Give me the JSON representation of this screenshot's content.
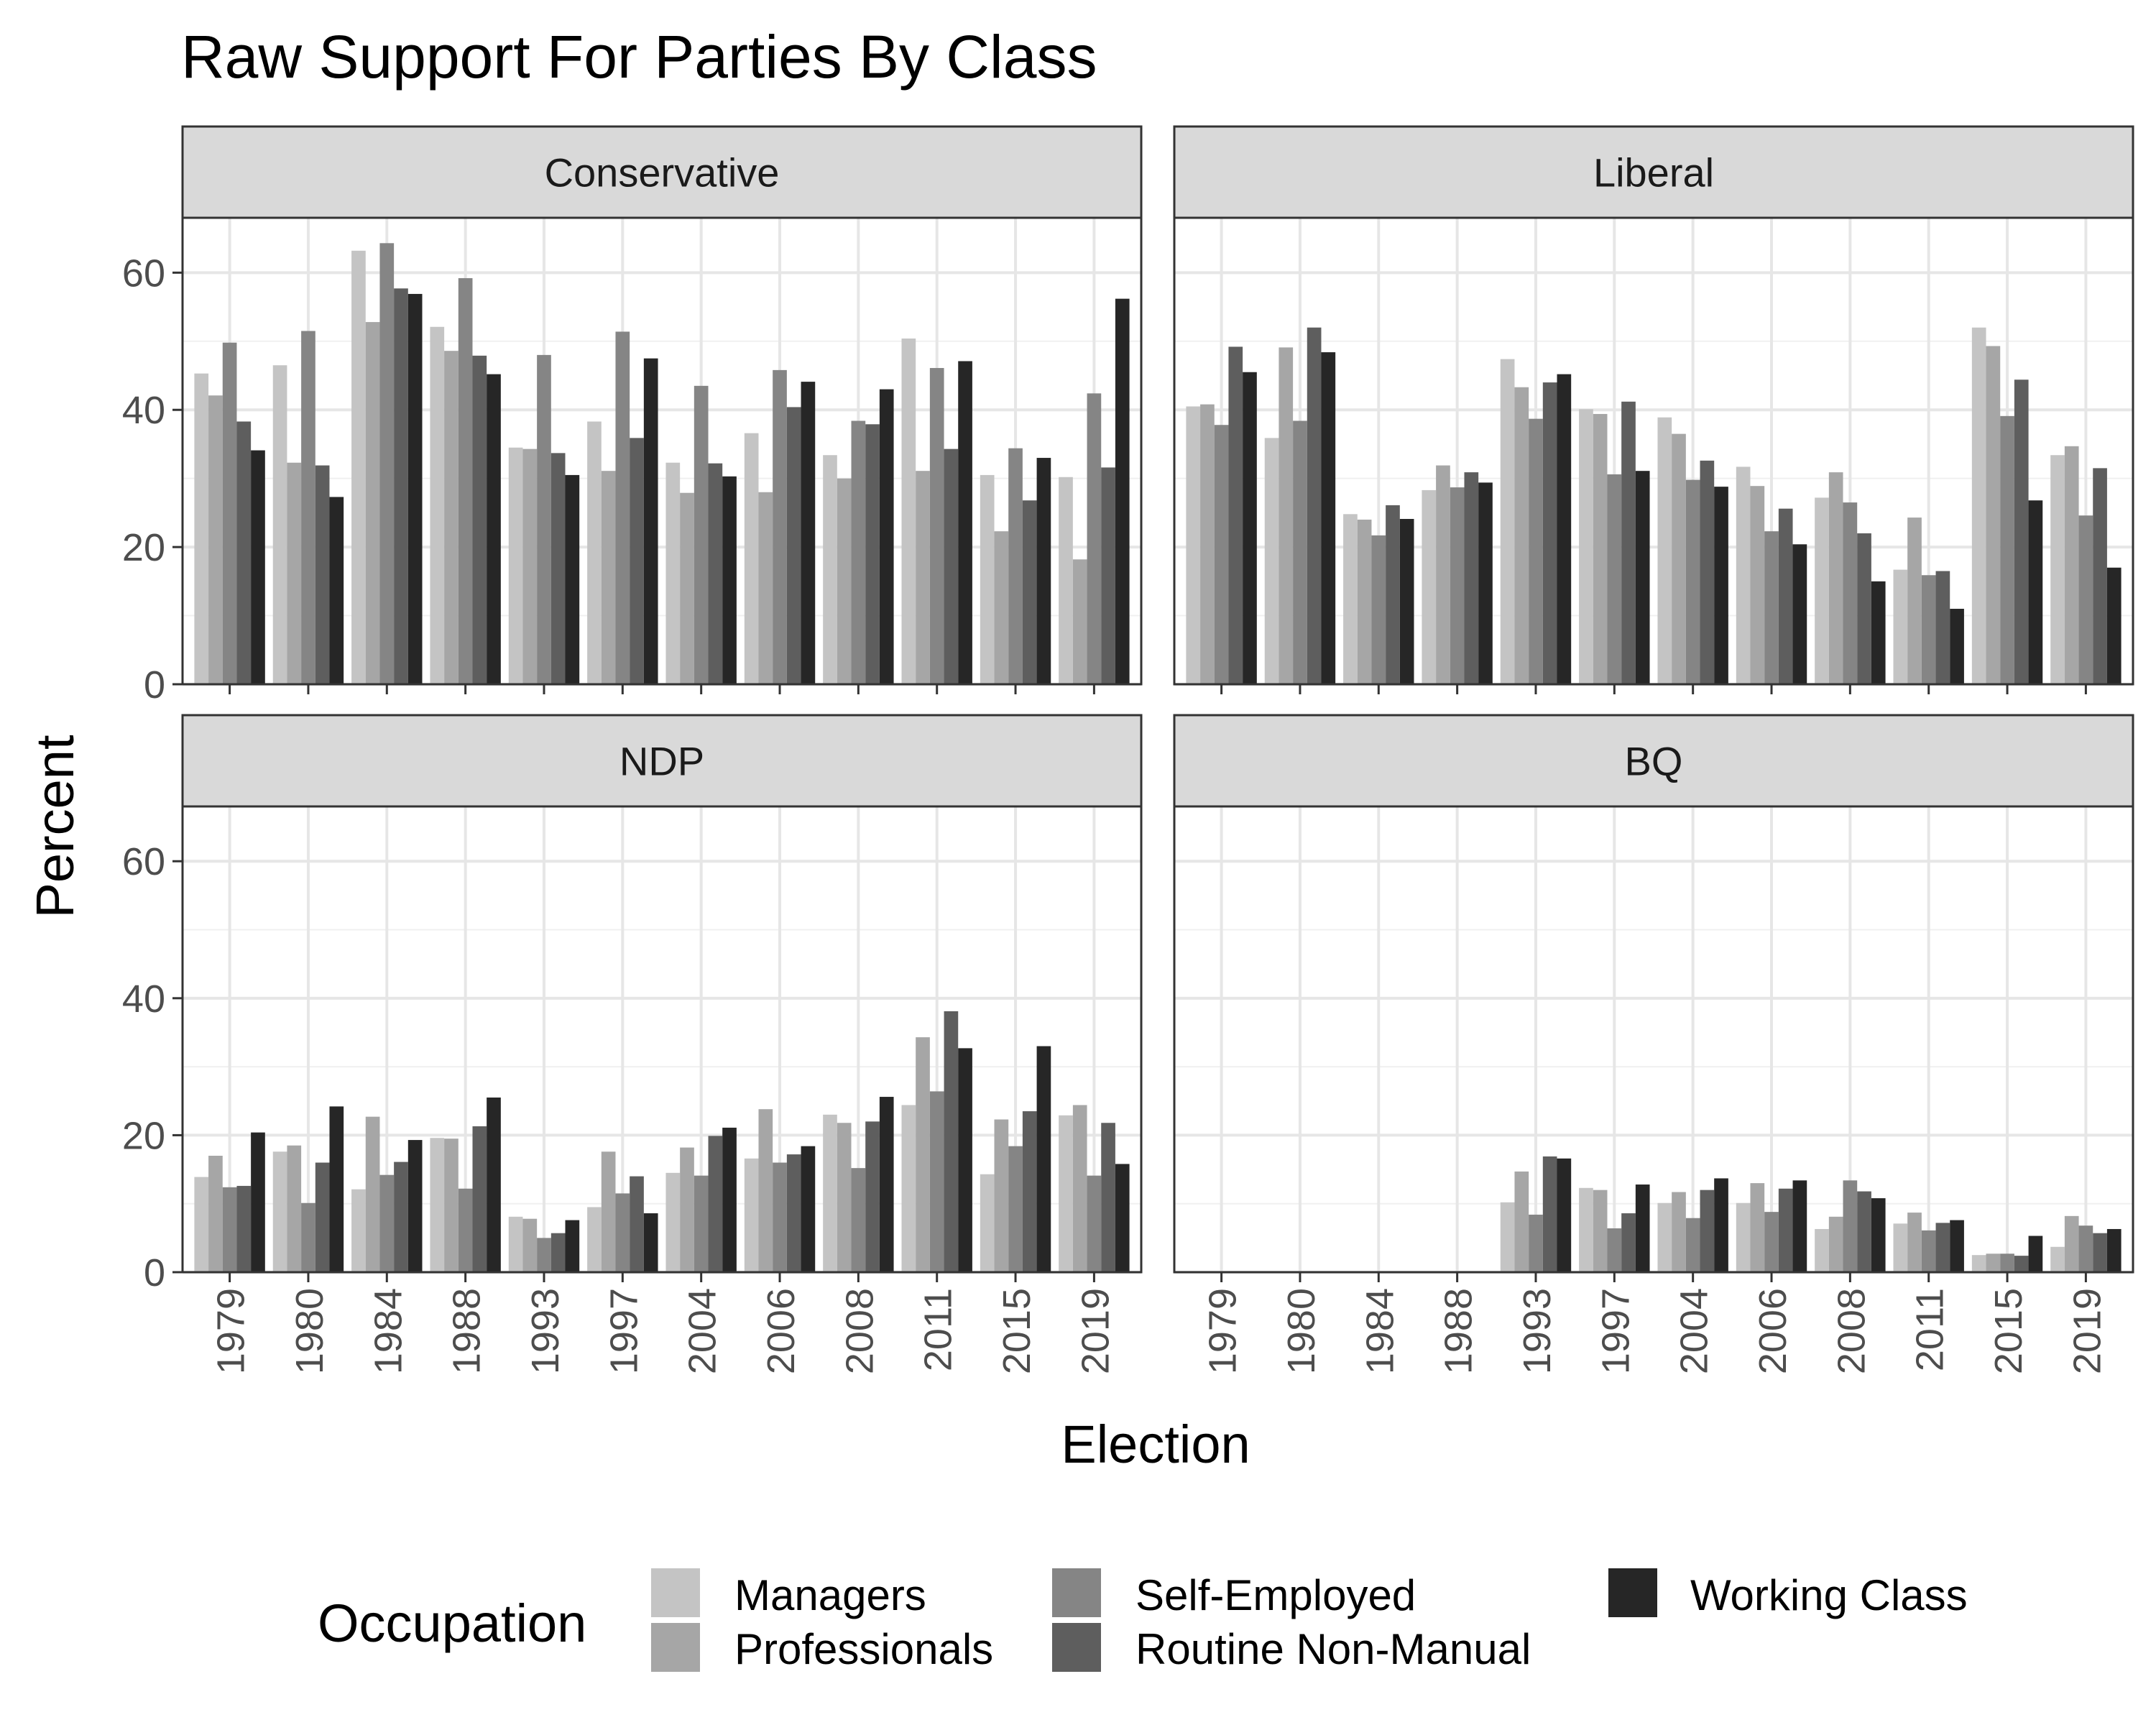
{
  "chart_data": {
    "type": "bar",
    "title": "Raw Support For Parties By Class",
    "xlabel": "Election",
    "ylabel": "Percent",
    "ylim": [
      0,
      68
    ],
    "yticks": [
      0,
      20,
      40,
      60
    ],
    "categories": [
      "1979",
      "1980",
      "1984",
      "1988",
      "1993",
      "1997",
      "2004",
      "2006",
      "2008",
      "2011",
      "2015",
      "2019"
    ],
    "legend": {
      "title": "Occupation",
      "position": "bottom",
      "entries": [
        {
          "name": "Managers",
          "color": "#c4c4c4"
        },
        {
          "name": "Professionals",
          "color": "#a6a6a6"
        },
        {
          "name": "Self-Employed",
          "color": "#858585"
        },
        {
          "name": "Routine Non-Manual",
          "color": "#5e5e5e"
        },
        {
          "name": "Working Class",
          "color": "#262626"
        }
      ]
    },
    "panels": [
      {
        "title": "Conservative",
        "series": [
          {
            "name": "Managers",
            "values": [
              45.3,
              46.5,
              63.2,
              52.1,
              34.5,
              38.3,
              32.3,
              36.6,
              33.4,
              50.4,
              30.5,
              30.2
            ]
          },
          {
            "name": "Professionals",
            "values": [
              42.1,
              32.3,
              52.8,
              48.6,
              34.3,
              31.1,
              27.9,
              28.0,
              30.0,
              31.1,
              22.3,
              18.2
            ]
          },
          {
            "name": "Self-Employed",
            "values": [
              49.8,
              51.5,
              64.3,
              59.2,
              48.0,
              51.4,
              43.5,
              45.8,
              38.4,
              46.1,
              34.4,
              42.4
            ]
          },
          {
            "name": "Routine Non-Manual",
            "values": [
              38.3,
              31.9,
              57.7,
              47.9,
              33.7,
              35.9,
              32.2,
              40.4,
              37.9,
              34.3,
              26.8,
              31.6
            ]
          },
          {
            "name": "Working Class",
            "values": [
              34.1,
              27.3,
              56.9,
              45.2,
              30.5,
              47.5,
              30.3,
              44.1,
              43.0,
              47.1,
              33.0,
              56.2
            ]
          }
        ]
      },
      {
        "title": "Liberal",
        "series": [
          {
            "name": "Managers",
            "values": [
              40.5,
              35.9,
              24.8,
              28.3,
              47.4,
              40.1,
              38.9,
              31.7,
              27.2,
              16.7,
              52.0,
              33.4
            ]
          },
          {
            "name": "Professionals",
            "values": [
              40.8,
              49.1,
              24.0,
              31.9,
              43.3,
              39.4,
              36.5,
              28.9,
              30.9,
              24.3,
              49.3,
              34.7
            ]
          },
          {
            "name": "Self-Employed",
            "values": [
              37.8,
              38.4,
              21.7,
              28.7,
              38.7,
              30.6,
              29.8,
              22.3,
              26.5,
              15.9,
              39.1,
              24.6
            ]
          },
          {
            "name": "Routine Non-Manual",
            "values": [
              49.2,
              52.0,
              26.1,
              30.9,
              44.0,
              41.2,
              32.6,
              25.6,
              22.0,
              16.5,
              44.4,
              31.5
            ]
          },
          {
            "name": "Working Class",
            "values": [
              45.5,
              48.4,
              24.1,
              29.4,
              45.2,
              31.1,
              28.8,
              20.4,
              15.0,
              11.0,
              26.8,
              17.0
            ]
          }
        ]
      },
      {
        "title": "NDP",
        "series": [
          {
            "name": "Managers",
            "values": [
              13.9,
              17.6,
              12.1,
              19.6,
              8.1,
              9.5,
              14.5,
              16.6,
              23.0,
              24.4,
              14.3,
              22.9
            ]
          },
          {
            "name": "Professionals",
            "values": [
              17.0,
              18.5,
              22.7,
              19.5,
              7.8,
              17.6,
              18.2,
              23.8,
              21.8,
              34.3,
              22.3,
              24.4
            ]
          },
          {
            "name": "Self-Employed",
            "values": [
              12.4,
              10.1,
              14.2,
              12.2,
              5.0,
              11.5,
              14.1,
              16.0,
              15.2,
              26.4,
              18.4,
              14.1
            ]
          },
          {
            "name": "Routine Non-Manual",
            "values": [
              12.6,
              16.0,
              16.1,
              21.3,
              5.7,
              14.0,
              19.9,
              17.2,
              22.0,
              38.1,
              23.5,
              21.8
            ]
          },
          {
            "name": "Working Class",
            "values": [
              20.4,
              24.2,
              19.3,
              25.5,
              7.6,
              8.6,
              21.1,
              18.4,
              25.6,
              32.7,
              33.0,
              15.8
            ]
          }
        ]
      },
      {
        "title": "BQ",
        "series": [
          {
            "name": "Managers",
            "values": [
              null,
              null,
              null,
              null,
              10.2,
              12.3,
              10.1,
              10.1,
              6.3,
              7.1,
              2.5,
              3.7
            ]
          },
          {
            "name": "Professionals",
            "values": [
              null,
              null,
              null,
              null,
              14.7,
              12.0,
              11.7,
              13.0,
              8.1,
              8.7,
              2.7,
              8.2
            ]
          },
          {
            "name": "Self-Employed",
            "values": [
              null,
              null,
              null,
              null,
              8.4,
              6.4,
              7.9,
              8.8,
              13.4,
              6.1,
              2.7,
              6.8
            ]
          },
          {
            "name": "Routine Non-Manual",
            "values": [
              null,
              null,
              null,
              null,
              16.9,
              8.6,
              12.0,
              12.2,
              11.8,
              7.2,
              2.4,
              5.7
            ]
          },
          {
            "name": "Working Class",
            "values": [
              null,
              null,
              null,
              null,
              16.6,
              12.8,
              13.7,
              13.4,
              10.8,
              7.6,
              5.3,
              6.3
            ]
          }
        ]
      }
    ]
  }
}
